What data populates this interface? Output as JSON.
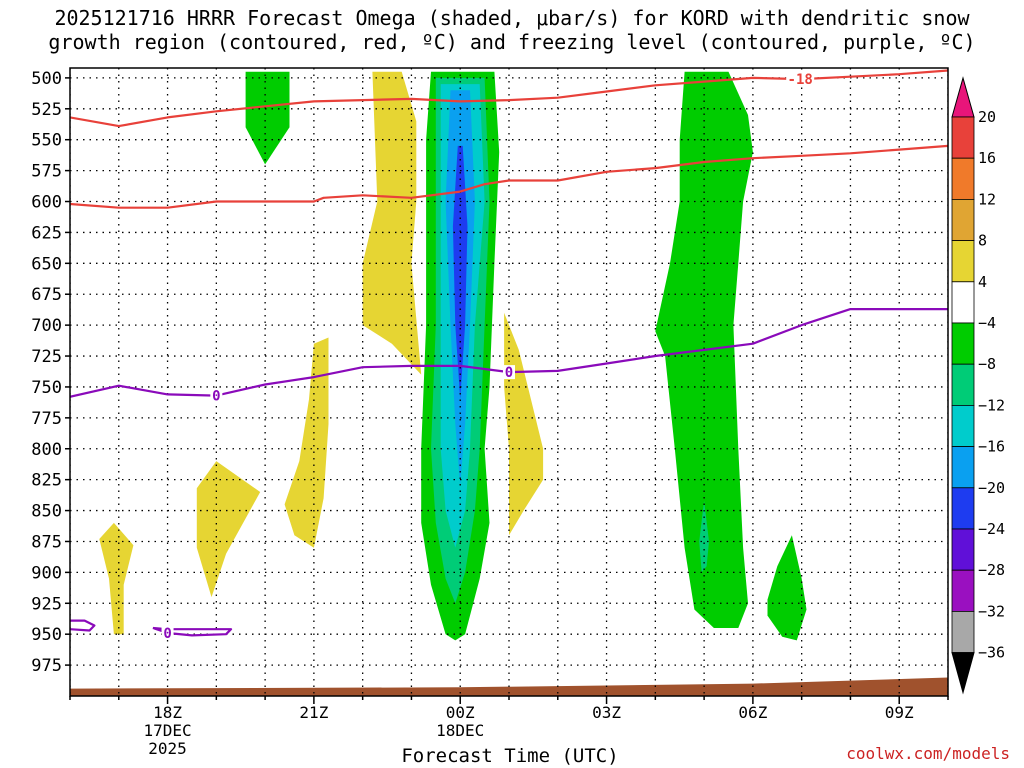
{
  "title_line1": "2025121716 HRRR Forecast Omega (shaded, μbar/s) for KORD with dendritic snow",
  "title_line2": "growth region (contoured, red, ºC) and freezing level (contoured, purple, ºC)",
  "credit": "coolwx.com/models",
  "colors": {
    "red_contour": "#e8413a",
    "purple_contour": "#8a0aba",
    "terrain": "#a0522d",
    "green": "#00cc00",
    "yellow": "#e6d533"
  },
  "chart_data": {
    "type": "heatmap",
    "title": "2025121716 HRRR Forecast Omega (shaded, μbar/s) for KORD with dendritic snow growth region (contoured, red, ºC) and freezing level (contoured, purple, ºC)",
    "xlabel": "Forecast Time (UTC)",
    "ylabel": "",
    "x_unit": "hours since 2025-12-17 16Z",
    "xlim": [
      0,
      18
    ],
    "y_ticks": [
      500,
      525,
      550,
      575,
      600,
      625,
      650,
      675,
      700,
      725,
      750,
      775,
      800,
      825,
      850,
      875,
      900,
      925,
      950,
      975
    ],
    "x_ticks": [
      {
        "x": 2,
        "lines": [
          "18Z",
          "17DEC",
          "2025"
        ]
      },
      {
        "x": 5,
        "lines": [
          "21Z"
        ]
      },
      {
        "x": 8,
        "lines": [
          "00Z",
          "18DEC"
        ]
      },
      {
        "x": 11,
        "lines": [
          "03Z"
        ]
      },
      {
        "x": 14,
        "lines": [
          "06Z"
        ]
      },
      {
        "x": 17,
        "lines": [
          "09Z"
        ]
      }
    ],
    "colorbar": {
      "labels": [
        "20",
        "16",
        "12",
        "8",
        "4",
        "−4",
        "−8",
        "−12",
        "−16",
        "−20",
        "−24",
        "−28",
        "−32",
        "−36"
      ],
      "colors": [
        "#e8413a",
        "#f07a2a",
        "#e0a533",
        "#e6d533",
        "#ffffff",
        "#00cc00",
        "#00cc77",
        "#00cccc",
        "#0aa0f0",
        "#1e3cf0",
        "#6010d8",
        "#9a10c0",
        "#a8a8a8"
      ],
      "top_color": "#e8157a",
      "bottom_color": "#000000"
    },
    "contours": [
      {
        "name": "dendritic-top",
        "label": "-18",
        "color": "#e8413a",
        "points": [
          [
            0,
            532
          ],
          [
            1,
            539
          ],
          [
            2,
            532
          ],
          [
            3,
            527
          ],
          [
            4,
            523
          ],
          [
            5,
            519
          ],
          [
            6,
            518
          ],
          [
            7,
            517
          ],
          [
            8,
            519
          ],
          [
            9,
            518
          ],
          [
            10,
            516
          ],
          [
            11,
            511
          ],
          [
            12,
            506
          ],
          [
            13,
            503
          ],
          [
            14,
            500
          ],
          [
            15,
            501
          ],
          [
            16,
            499
          ],
          [
            17,
            497
          ],
          [
            18,
            494
          ]
        ]
      },
      {
        "name": "dendritic-bottom",
        "label": "",
        "color": "#e8413a",
        "points": [
          [
            0,
            602
          ],
          [
            1,
            605
          ],
          [
            2,
            605
          ],
          [
            3,
            600
          ],
          [
            4,
            600
          ],
          [
            5,
            600
          ],
          [
            5.2,
            597
          ],
          [
            6,
            595
          ],
          [
            7,
            597
          ],
          [
            8,
            592
          ],
          [
            8.5,
            586
          ],
          [
            9,
            583
          ],
          [
            10,
            583
          ],
          [
            11,
            576
          ],
          [
            12,
            573
          ],
          [
            13,
            568
          ],
          [
            14,
            565
          ],
          [
            15,
            563
          ],
          [
            16,
            561
          ],
          [
            17,
            558
          ],
          [
            18,
            555
          ]
        ]
      },
      {
        "name": "freezing-level",
        "label": "0",
        "color": "#8a0aba",
        "points": [
          [
            0,
            758
          ],
          [
            1,
            749
          ],
          [
            2,
            756
          ],
          [
            3,
            757
          ],
          [
            4,
            748
          ],
          [
            5,
            742
          ],
          [
            6,
            734
          ],
          [
            7,
            733
          ],
          [
            8,
            733
          ],
          [
            9,
            738
          ],
          [
            10,
            737
          ],
          [
            11,
            731
          ],
          [
            12,
            725
          ],
          [
            13,
            720
          ],
          [
            14,
            715
          ],
          [
            15,
            700
          ],
          [
            16,
            687
          ],
          [
            17,
            687
          ],
          [
            18,
            687
          ]
        ]
      },
      {
        "name": "freezing-level-lower",
        "label": "0",
        "color": "#8a0aba",
        "points": [
          [
            0,
            946
          ],
          [
            0.4,
            947
          ],
          [
            0.5,
            943
          ],
          [
            0.3,
            939
          ],
          [
            0,
            939
          ]
        ],
        "points2": [
          [
            1.7,
            945
          ],
          [
            2,
            949
          ],
          [
            2.5,
            951
          ],
          [
            3.2,
            950
          ],
          [
            3.3,
            946
          ],
          [
            2,
            946
          ],
          [
            1.7,
            945
          ]
        ]
      }
    ],
    "omega_regions": [
      {
        "color": "#00cc00",
        "polygon": [
          [
            3.6,
            495
          ],
          [
            4.5,
            495
          ],
          [
            4.5,
            540
          ],
          [
            4.0,
            570
          ],
          [
            3.6,
            540
          ]
        ]
      },
      {
        "color": "#e6d533",
        "polygon": [
          [
            6.2,
            495
          ],
          [
            6.8,
            495
          ],
          [
            7.1,
            535
          ],
          [
            7.1,
            600
          ],
          [
            7.0,
            650
          ],
          [
            7.2,
            740
          ],
          [
            6.6,
            715
          ],
          [
            6.0,
            700
          ],
          [
            6.0,
            650
          ],
          [
            6.3,
            600
          ]
        ]
      },
      {
        "color": "#e6d533",
        "polygon": [
          [
            5.0,
            715
          ],
          [
            5.3,
            710
          ],
          [
            5.3,
            780
          ],
          [
            5.2,
            840
          ],
          [
            5.0,
            880
          ],
          [
            4.6,
            870
          ],
          [
            4.4,
            845
          ],
          [
            4.7,
            810
          ],
          [
            4.9,
            760
          ]
        ]
      },
      {
        "color": "#e6d533",
        "polygon": [
          [
            2.6,
            832
          ],
          [
            3.0,
            810
          ],
          [
            3.9,
            835
          ],
          [
            3.2,
            885
          ],
          [
            2.9,
            920
          ],
          [
            2.6,
            880
          ]
        ]
      },
      {
        "color": "#e6d533",
        "polygon": [
          [
            0.6,
            873
          ],
          [
            0.9,
            860
          ],
          [
            1.3,
            878
          ],
          [
            1.1,
            910
          ],
          [
            1.1,
            950
          ],
          [
            0.9,
            950
          ],
          [
            0.8,
            905
          ]
        ]
      },
      {
        "color": "#e6d533",
        "polygon": [
          [
            8.9,
            690
          ],
          [
            9.2,
            720
          ],
          [
            9.7,
            800
          ],
          [
            9.7,
            825
          ],
          [
            9.3,
            850
          ],
          [
            9.0,
            870
          ],
          [
            9.0,
            800
          ],
          [
            8.9,
            750
          ]
        ]
      },
      {
        "color": "#00cc00",
        "polygon": [
          [
            7.4,
            495
          ],
          [
            8.7,
            495
          ],
          [
            8.8,
            560
          ],
          [
            8.7,
            650
          ],
          [
            8.6,
            750
          ],
          [
            8.5,
            800
          ],
          [
            8.6,
            860
          ],
          [
            8.4,
            905
          ],
          [
            8.2,
            935
          ],
          [
            8.1,
            950
          ],
          [
            7.9,
            955
          ],
          [
            7.7,
            950
          ],
          [
            7.4,
            910
          ],
          [
            7.2,
            860
          ],
          [
            7.2,
            800
          ],
          [
            7.3,
            700
          ],
          [
            7.3,
            550
          ]
        ]
      },
      {
        "color": "#00cc77",
        "polygon": [
          [
            7.5,
            500
          ],
          [
            8.5,
            500
          ],
          [
            8.6,
            600
          ],
          [
            8.5,
            700
          ],
          [
            8.4,
            800
          ],
          [
            8.3,
            850
          ],
          [
            8.1,
            900
          ],
          [
            7.9,
            925
          ],
          [
            7.7,
            905
          ],
          [
            7.5,
            860
          ],
          [
            7.4,
            800
          ],
          [
            7.5,
            700
          ]
        ]
      },
      {
        "color": "#00cccc",
        "polygon": [
          [
            7.6,
            505
          ],
          [
            8.4,
            505
          ],
          [
            8.5,
            600
          ],
          [
            8.3,
            700
          ],
          [
            8.2,
            800
          ],
          [
            8.1,
            850
          ],
          [
            7.9,
            880
          ],
          [
            7.7,
            850
          ],
          [
            7.6,
            800
          ],
          [
            7.6,
            600
          ]
        ]
      },
      {
        "color": "#0aa0f0",
        "polygon": [
          [
            7.8,
            510
          ],
          [
            8.2,
            510
          ],
          [
            8.3,
            600
          ],
          [
            8.2,
            700
          ],
          [
            8.1,
            780
          ],
          [
            8.0,
            830
          ],
          [
            7.9,
            780
          ],
          [
            7.8,
            700
          ],
          [
            7.7,
            600
          ]
        ]
      },
      {
        "color": "#1e3cf0",
        "polygon": [
          [
            7.95,
            555
          ],
          [
            8.05,
            555
          ],
          [
            8.15,
            620
          ],
          [
            8.1,
            700
          ],
          [
            8.0,
            760
          ],
          [
            7.9,
            700
          ],
          [
            7.85,
            620
          ]
        ]
      },
      {
        "color": "#00cc00",
        "polygon": [
          [
            12.6,
            495
          ],
          [
            13.5,
            495
          ],
          [
            13.9,
            530
          ],
          [
            14.0,
            560
          ],
          [
            13.8,
            600
          ],
          [
            13.7,
            650
          ],
          [
            13.6,
            700
          ],
          [
            13.7,
            800
          ],
          [
            13.8,
            880
          ],
          [
            13.9,
            925
          ],
          [
            13.7,
            945
          ],
          [
            13.2,
            945
          ],
          [
            12.8,
            930
          ],
          [
            12.6,
            880
          ],
          [
            12.4,
            800
          ],
          [
            12.2,
            725
          ],
          [
            12.0,
            705
          ],
          [
            12.3,
            650
          ],
          [
            12.5,
            600
          ],
          [
            12.5,
            550
          ]
        ]
      },
      {
        "color": "#00cc77",
        "polygon": [
          [
            12.9,
            875
          ],
          [
            13.0,
            842
          ],
          [
            13.1,
            875
          ],
          [
            13.05,
            895
          ],
          [
            12.95,
            900
          ]
        ]
      },
      {
        "color": "#00cc00",
        "polygon": [
          [
            14.3,
            922
          ],
          [
            14.5,
            895
          ],
          [
            14.8,
            870
          ],
          [
            15.0,
            905
          ],
          [
            15.1,
            930
          ],
          [
            14.9,
            955
          ],
          [
            14.6,
            952
          ],
          [
            14.3,
            935
          ]
        ]
      }
    ],
    "terrain": {
      "color": "#a0522d",
      "surface": [
        [
          0,
          994
        ],
        [
          8,
          993
        ],
        [
          14,
          990
        ],
        [
          18,
          985
        ]
      ]
    }
  }
}
